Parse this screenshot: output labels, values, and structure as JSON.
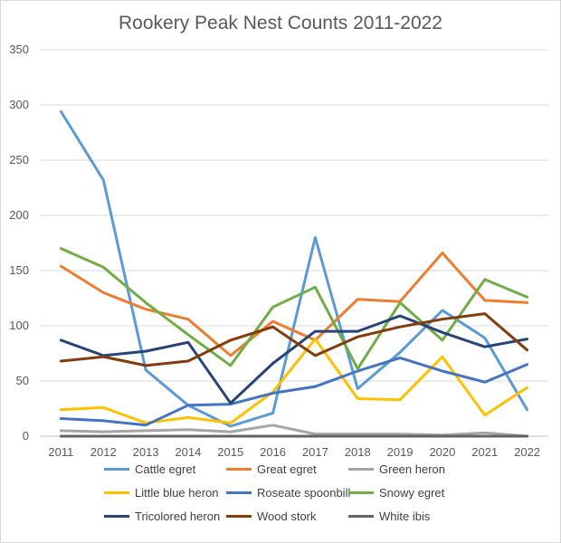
{
  "chart_data": {
    "type": "line",
    "title": "Rookery Peak Nest Counts 2011-2022",
    "xlabel": "",
    "ylabel": "",
    "x": [
      "2011",
      "2012",
      "2013",
      "2014",
      "2015",
      "2016",
      "2017",
      "2018",
      "2019",
      "2020",
      "2021",
      "2022"
    ],
    "ylim": [
      0,
      350
    ],
    "yticks": [
      0,
      50,
      100,
      150,
      200,
      250,
      300,
      350
    ],
    "grid": "horizontal",
    "legend_position": "bottom",
    "series": [
      {
        "name": "Cattle egret",
        "color": "#5b9bd5",
        "values": [
          294,
          232,
          60,
          28,
          9,
          21,
          180,
          43,
          76,
          114,
          89,
          24
        ]
      },
      {
        "name": "Great egret",
        "color": "#ed7d31",
        "values": [
          154,
          130,
          115,
          106,
          73,
          104,
          87,
          124,
          122,
          166,
          123,
          121
        ]
      },
      {
        "name": "Green heron",
        "color": "#a5a5a5",
        "values": [
          5,
          4,
          5,
          6,
          4,
          10,
          2,
          2,
          2,
          1,
          3,
          0
        ]
      },
      {
        "name": "Little blue heron",
        "color": "#ffc000",
        "values": [
          24,
          26,
          12,
          17,
          12,
          40,
          88,
          34,
          33,
          72,
          19,
          44
        ]
      },
      {
        "name": "Roseate spoonbill",
        "color": "#4472c4",
        "values": [
          16,
          14,
          10,
          28,
          29,
          39,
          45,
          59,
          71,
          59,
          49,
          65
        ]
      },
      {
        "name": "Snowy egret",
        "color": "#70ad47",
        "values": [
          170,
          153,
          121,
          92,
          64,
          117,
          135,
          61,
          121,
          87,
          142,
          126
        ]
      },
      {
        "name": "Tricolored heron",
        "color": "#264478",
        "values": [
          87,
          73,
          77,
          85,
          30,
          66,
          95,
          95,
          109,
          94,
          81,
          88
        ]
      },
      {
        "name": "Wood stork",
        "color": "#843c0c",
        "values": [
          68,
          72,
          64,
          68,
          87,
          99,
          73,
          90,
          99,
          106,
          111,
          78
        ]
      },
      {
        "name": "White ibis",
        "color": "#636363",
        "values": [
          0,
          0,
          0,
          0,
          0,
          0,
          0,
          0,
          0,
          0,
          0,
          0
        ]
      }
    ]
  }
}
